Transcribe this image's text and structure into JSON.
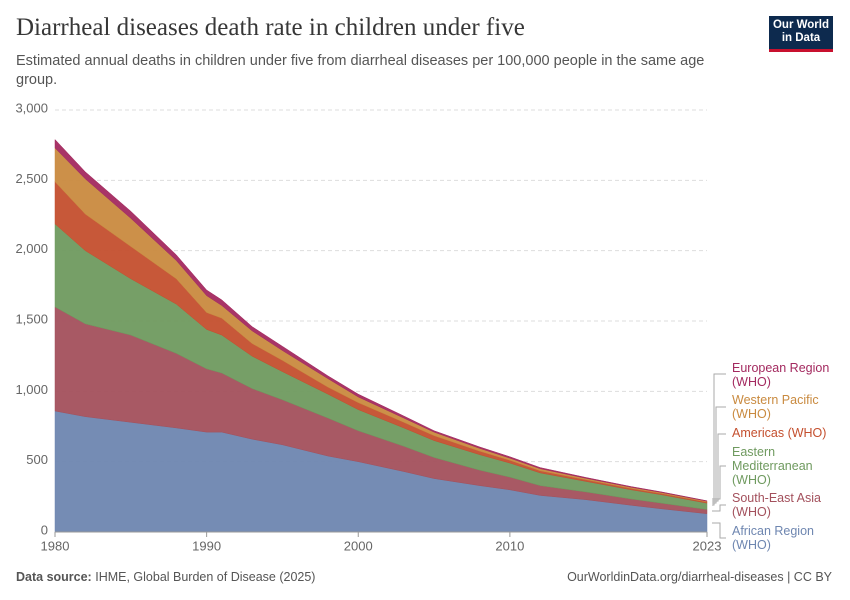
{
  "chart_data": {
    "type": "stacked-area",
    "title": "Diarrheal diseases death rate in children under five",
    "subtitle": "Estimated annual deaths in children under five from diarrheal diseases per 100,000 people in the same age group.",
    "x": [
      1980,
      1982,
      1985,
      1988,
      1990,
      1991,
      1993,
      1995,
      1998,
      2000,
      2003,
      2005,
      2008,
      2010,
      2012,
      2015,
      2018,
      2020,
      2023
    ],
    "xlim": [
      1980,
      2023
    ],
    "xticks": [
      1980,
      1990,
      2000,
      2010,
      2023
    ],
    "ylim": [
      0,
      3000
    ],
    "yticks": [
      0,
      500,
      {
        "value": 1000,
        "label": "1,000"
      },
      {
        "value": 1500,
        "label": "1,500"
      },
      {
        "value": 2000,
        "label": "2,000"
      },
      {
        "value": 2500,
        "label": "2,500"
      },
      {
        "value": 3000,
        "label": "3,000"
      }
    ],
    "grid": true,
    "series": [
      {
        "name": "African Region (WHO)",
        "color": "#6e86b0",
        "values": [
          860,
          820,
          780,
          740,
          710,
          710,
          660,
          620,
          540,
          500,
          430,
          380,
          330,
          300,
          260,
          230,
          190,
          165,
          130
        ]
      },
      {
        "name": "South-East Asia (WHO)",
        "color": "#a3505c",
        "values": [
          740,
          660,
          620,
          530,
          450,
          420,
          360,
          320,
          270,
          220,
          180,
          150,
          110,
          90,
          70,
          55,
          45,
          40,
          30
        ]
      },
      {
        "name": "Eastern Mediterranean (WHO)",
        "color": "#6f9a5f",
        "values": [
          590,
          520,
          400,
          350,
          280,
          270,
          230,
          200,
          170,
          150,
          130,
          120,
          110,
          100,
          90,
          75,
          65,
          60,
          45
        ]
      },
      {
        "name": "Americas (WHO)",
        "color": "#c44f2e",
        "values": [
          300,
          260,
          230,
          180,
          120,
          120,
          90,
          80,
          50,
          50,
          40,
          35,
          25,
          20,
          15,
          12,
          10,
          9,
          8
        ]
      },
      {
        "name": "Western Pacific (WHO)",
        "color": "#c98a3f",
        "values": [
          240,
          250,
          200,
          130,
          120,
          90,
          90,
          70,
          60,
          40,
          30,
          25,
          20,
          15,
          15,
          10,
          8,
          7,
          6
        ]
      },
      {
        "name": "European Region (WHO)",
        "color": "#a3295f",
        "values": [
          60,
          50,
          50,
          40,
          40,
          40,
          30,
          30,
          20,
          20,
          15,
          10,
          10,
          10,
          8,
          6,
          5,
          4,
          3
        ]
      }
    ]
  },
  "logo": "Our World in Data",
  "footer": {
    "source_label": "Data source:",
    "source": "IHME, Global Burden of Disease (2025)",
    "url": "OurWorldinData.org/diarrheal-diseases | CC BY"
  }
}
